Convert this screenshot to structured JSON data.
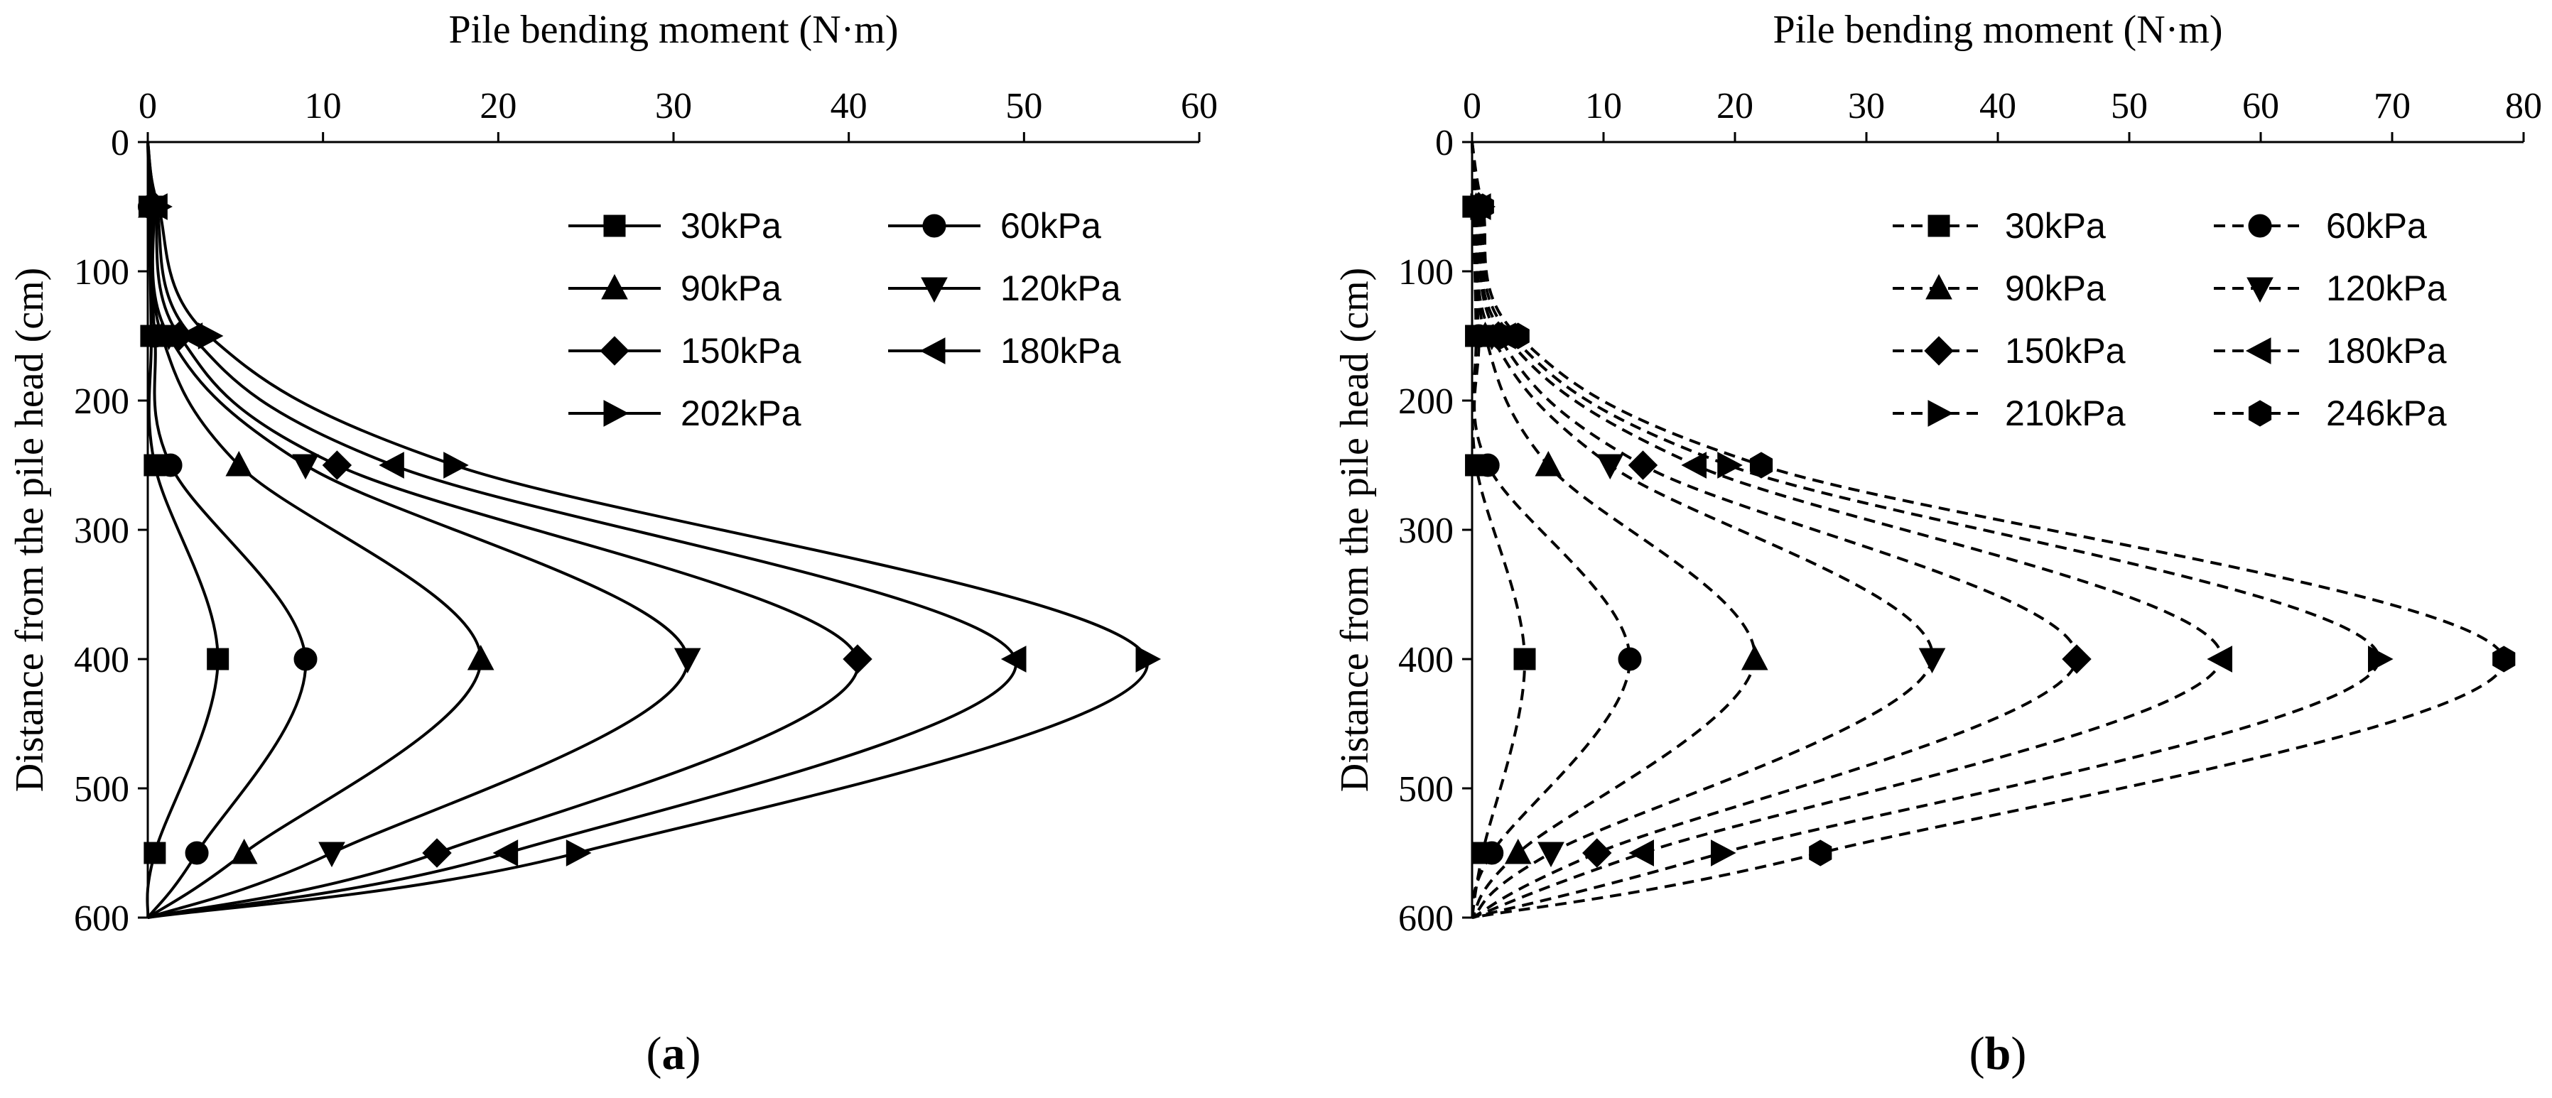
{
  "chart_data": [
    {
      "panel": "a",
      "panel_label": "a",
      "type": "line",
      "line_style": "solid",
      "title": "",
      "xlabel": "Pile bending moment (N·m)",
      "ylabel": "Distance from the pile head (cm)",
      "x_axis_position": "top",
      "y_inverted": true,
      "xlim": [
        0,
        60
      ],
      "ylim": [
        0,
        600
      ],
      "x_ticks": [
        0,
        10,
        20,
        30,
        40,
        50,
        60
      ],
      "y_ticks": [
        0,
        100,
        200,
        300,
        400,
        500,
        600
      ],
      "legend_position": "top-right",
      "legend_columns": 2,
      "depths": [
        0,
        50,
        150,
        250,
        400,
        550,
        600
      ],
      "series": [
        {
          "name": "30kPa",
          "marker": "square",
          "values": [
            0,
            0.1,
            0.2,
            0.4,
            4.0,
            0.4,
            0
          ]
        },
        {
          "name": "60kPa",
          "marker": "circle",
          "values": [
            0,
            0.1,
            0.4,
            1.3,
            9.0,
            2.8,
            0
          ]
        },
        {
          "name": "90kPa",
          "marker": "triangle-up",
          "values": [
            0,
            0.2,
            0.8,
            5.2,
            19.0,
            5.5,
            0
          ]
        },
        {
          "name": "120kPa",
          "marker": "triangle-down",
          "values": [
            0,
            0.3,
            1.2,
            9.0,
            30.8,
            10.5,
            0
          ]
        },
        {
          "name": "150kPa",
          "marker": "diamond",
          "values": [
            0,
            0.4,
            1.8,
            10.8,
            40.5,
            16.5,
            0
          ]
        },
        {
          "name": "180kPa",
          "marker": "triangle-left",
          "values": [
            0,
            0.5,
            2.5,
            14.0,
            49.5,
            20.5,
            0
          ]
        },
        {
          "name": "202kPa",
          "marker": "triangle-right",
          "values": [
            0,
            0.6,
            3.5,
            17.5,
            57.0,
            24.5,
            0
          ]
        }
      ]
    },
    {
      "panel": "b",
      "panel_label": "b",
      "type": "line",
      "line_style": "dashed",
      "title": "",
      "xlabel": "Pile bending moment (N·m)",
      "ylabel": "Distance from the pile head (cm)",
      "x_axis_position": "top",
      "y_inverted": true,
      "xlim": [
        0,
        80
      ],
      "ylim": [
        0,
        600
      ],
      "x_ticks": [
        0,
        10,
        20,
        30,
        40,
        50,
        60,
        70,
        80
      ],
      "y_ticks": [
        0,
        100,
        200,
        300,
        400,
        500,
        600
      ],
      "legend_position": "top-right",
      "legend_columns": 2,
      "depths": [
        0,
        50,
        150,
        250,
        400,
        550,
        600
      ],
      "series": [
        {
          "name": "30kPa",
          "marker": "square",
          "values": [
            0,
            0.1,
            0.3,
            0.3,
            4.0,
            0.8,
            0
          ]
        },
        {
          "name": "60kPa",
          "marker": "circle",
          "values": [
            0,
            0.2,
            0.5,
            1.2,
            12.0,
            1.5,
            0
          ]
        },
        {
          "name": "90kPa",
          "marker": "triangle-up",
          "values": [
            0,
            0.3,
            1.0,
            5.8,
            21.5,
            3.5,
            0
          ]
        },
        {
          "name": "120kPa",
          "marker": "triangle-down",
          "values": [
            0,
            0.4,
            1.5,
            10.5,
            35.0,
            6.0,
            0
          ]
        },
        {
          "name": "150kPa",
          "marker": "diamond",
          "values": [
            0,
            0.5,
            2.0,
            13.0,
            46.0,
            9.5,
            0
          ]
        },
        {
          "name": "180kPa",
          "marker": "triangle-left",
          "values": [
            0,
            0.6,
            2.5,
            17.0,
            57.0,
            13.0,
            0
          ]
        },
        {
          "name": "210kPa",
          "marker": "triangle-right",
          "values": [
            0,
            0.7,
            3.0,
            19.5,
            69.0,
            19.0,
            0
          ]
        },
        {
          "name": "246kPa",
          "marker": "hexagon",
          "values": [
            0,
            0.8,
            3.5,
            22.0,
            78.5,
            26.5,
            0
          ]
        }
      ]
    }
  ]
}
